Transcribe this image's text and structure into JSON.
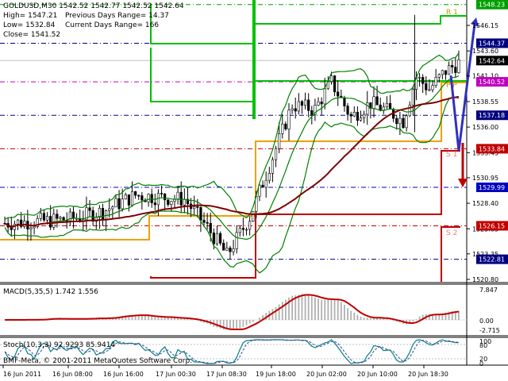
{
  "header": {
    "symbol_line": "GOLDUSD,M30  1542.52 1542.77 1542.52 1542.64",
    "high": "High= 1547.21",
    "prev_range": "Previous Days Range= 14.37",
    "low": "Low= 1532.84",
    "curr_range": "Current Days Range= 166",
    "close": "Close= 1541.52"
  },
  "price_axis": {
    "ticks": [
      "1546.15",
      "1543.60",
      "1541.10",
      "1538.55",
      "1536.00",
      "1533.45",
      "1530.95",
      "1528.40",
      "1525.85",
      "1523.35",
      "1520.80"
    ],
    "tags": [
      {
        "label": "1548.23",
        "bg": "#00a000",
        "fg": "#ffffff"
      },
      {
        "label": "1544.37",
        "bg": "#000080",
        "fg": "#ffffff"
      },
      {
        "label": "1542.64",
        "bg": "#000000",
        "fg": "#ffffff"
      },
      {
        "label": "1540.52",
        "bg": "#c000c0",
        "fg": "#ffffff"
      },
      {
        "label": "1537.18",
        "bg": "#000080",
        "fg": "#ffffff"
      },
      {
        "label": "1533.84",
        "bg": "#c00000",
        "fg": "#ffffff"
      },
      {
        "label": "1529.99",
        "bg": "#0000c0",
        "fg": "#ffffff"
      },
      {
        "label": "1526.15",
        "bg": "#c00000",
        "fg": "#ffffff"
      },
      {
        "label": "1522.81",
        "bg": "#000080",
        "fg": "#ffffff"
      }
    ]
  },
  "pivot_labels": {
    "r1": "R 1",
    "p": "P P",
    "s1": "S 1",
    "s2": "S 2"
  },
  "macd": {
    "label": "MACD(5,35,5) 1.742 1.556",
    "ticks": [
      "7.847",
      "0.00",
      "-2.715"
    ]
  },
  "stoch": {
    "label": "Stoch(10,3,3) 92.9293 85.9414",
    "ticks": [
      "100",
      "80",
      "20",
      "0"
    ]
  },
  "footer": {
    "copyright": "BMF-Meta, © 2001-2011 MetaQuotes Software Corp."
  },
  "time_axis": [
    "16 Jun 2011",
    "16 Jun 08:00",
    "16 Jun 16:00",
    "17 Jun 00:30",
    "17 Jun 08:30",
    "19 Jun 18:00",
    "20 Jun 02:00",
    "20 Jun 10:00",
    "20 Jun 18:30"
  ],
  "colors": {
    "bollinger": "#008000",
    "ma_slow": "#800000",
    "r_level": "#00c000",
    "s_level": "#c00000",
    "pp_level": "#f0a000",
    "macd_hist": "#b0b0b0",
    "macd_signal": "#c00000",
    "stoch_main": "#008080",
    "stoch_signal": "#4040a0",
    "arrow_up": "#3030c0",
    "arrow_down": "#c00000"
  }
}
